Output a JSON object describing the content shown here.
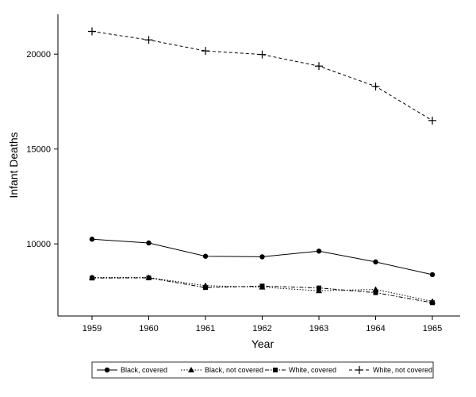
{
  "chart_data": {
    "type": "line",
    "xlabel": "Year",
    "ylabel": "Infant Deaths",
    "categories": [
      "1959",
      "1960",
      "1961",
      "1962",
      "1963",
      "1964",
      "1965"
    ],
    "yticks": [
      10000,
      15000,
      20000
    ],
    "ytick_labels": [
      "10000",
      "15000",
      "20000"
    ],
    "ylim": [
      6200,
      22100
    ],
    "grid": false,
    "legend_position": "bottom",
    "series": [
      {
        "name": "Black, covered",
        "marker": "circle",
        "dash": "solid",
        "values": [
          10250,
          10050,
          9350,
          9320,
          9620,
          9050,
          8380
        ]
      },
      {
        "name": "Black, not covered",
        "marker": "triangle",
        "dash": "dotted",
        "values": [
          8230,
          8230,
          7800,
          7720,
          7530,
          7600,
          6970
        ]
      },
      {
        "name": "White, covered",
        "marker": "square",
        "dash": "dashdot",
        "values": [
          8200,
          8210,
          7700,
          7780,
          7680,
          7430,
          6900
        ]
      },
      {
        "name": "White, not covered",
        "marker": "plus",
        "dash": "dashed",
        "values": [
          21200,
          20750,
          20170,
          19980,
          19370,
          18300,
          16500
        ]
      }
    ]
  }
}
